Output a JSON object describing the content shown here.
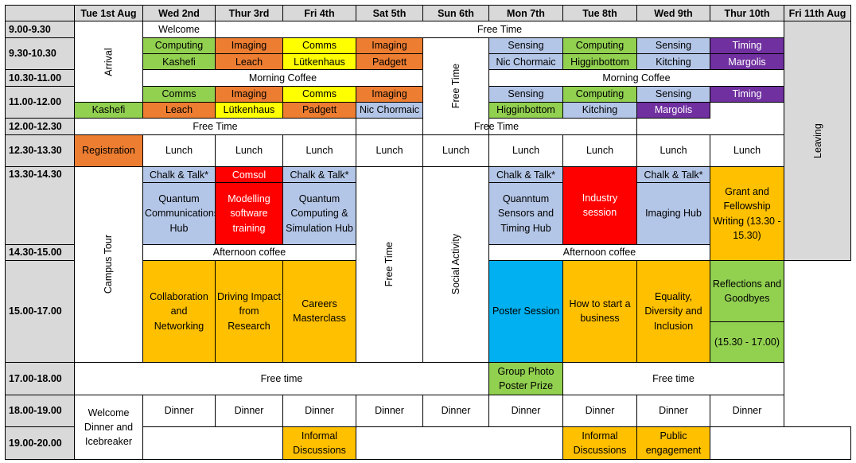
{
  "headers": [
    "",
    "Tue 1st Aug",
    "Wed 2nd",
    "Thur 3rd",
    "Fri 4th",
    "Sat 5th",
    "Sun 6th",
    "Mon 7th",
    "Tue 8th",
    "Wed 9th",
    "Thur 10th",
    "Fri 11th Aug"
  ],
  "times": {
    "t0900": "9.00-9.30",
    "t0930": "9.30-10.30",
    "t1030": "10.30-11.00",
    "t1100": "11.00-12.00",
    "t1200": "12.00-12.30",
    "t1230": "12.30-13.30",
    "t1330": "13.30-14.30",
    "t1430": "14.30-15.00",
    "t1500": "15.00-17.00",
    "t1700": "17.00-18.00",
    "t1800": "18.00-19.00",
    "t1900": "19.00-20.00"
  },
  "cells": {
    "arrival": "Arrival",
    "welcome": "Welcome",
    "free_time_morning": "Free Time",
    "wed_s1_topic": "Computing",
    "wed_s1_lead": "Kashefi",
    "thu_s1_topic": "Imaging",
    "thu_s1_lead": "Leach",
    "fri_s1_topic": "Comms",
    "fri_s1_lead": "Lütkenhaus",
    "sat_s1_topic": "Imaging",
    "sat_s1_lead": "Padgett",
    "sun_free_time": "Free Time",
    "mon_s1_topic": "Sensing",
    "mon_s1_lead": "Nic Chormaic",
    "tue8_s1_topic": "Computing",
    "tue8_s1_lead": "Higginbottom",
    "wed9_s1_topic": "Sensing",
    "wed9_s1_lead": "Kitching",
    "thu10_s1_topic": "Timing",
    "thu10_s1_lead": "Margolis",
    "leaving": "Leaving",
    "coffee_1": "Morning Coffee",
    "coffee_2": "Morning Coffee",
    "wed_s2_topic": "Comms",
    "wed_s2_lead": "Kashefi",
    "thu_s2_topic": "Imaging",
    "thu_s2_lead": "Leach",
    "fri_s2_topic": "Comms",
    "fri_s2_lead": "Lütkenhaus",
    "sat_s2_topic": "Imaging",
    "sat_s2_lead": "Padgett",
    "mon_s2_topic": "Sensing",
    "mon_s2_lead": "Nic Chormaic",
    "tue8_s2_topic": "Computing",
    "tue8_s2_lead": "Higginbottom",
    "wed9_s2_topic": "Sensing",
    "wed9_s2_lead": "Kitching",
    "thu10_s2_topic": "Timing",
    "thu10_s2_lead": "Margolis",
    "free_time_noon_1": "Free Time",
    "free_time_noon_2": "Free Time",
    "registration": "Registration",
    "lunch": "Lunch",
    "campus_tour": "Campus Tour",
    "wed_chalk": "Chalk & Talk*",
    "thu_comsol": "Comsol",
    "fri_chalk": "Chalk & Talk*",
    "sat_free_time": "Free Time",
    "social_activity": "Social Activity",
    "mon_chalk": "Chalk & Talk*",
    "tue8_industry": "Industry session",
    "wed9_chalk": "Chalk & Talk*",
    "grant_writing": "Grant and Fellowship Writing (13.30 - 15.30)",
    "wed_hub": "Quantum Communications Hub",
    "thu_modelling": "Modelling software training",
    "fri_hub": "Quantum Computing & Simulation Hub",
    "mon_hub": "Quanntum Sensors and Timing Hub",
    "wed9_hub": "Imaging Hub",
    "afternoon_coffee_1": "Afternoon coffee",
    "afternoon_coffee_2": "Afternoon coffee",
    "collab": "Collaboration and Networking",
    "impact": "Driving Impact from Research",
    "careers": "Careers Masterclass",
    "poster_session": "Poster Session",
    "startup": "How to start a business",
    "equality": "Equality, Diversity and Inclusion",
    "reflections": "Reflections and Goodbyes",
    "reflections_time": "(15.30 - 17.00)",
    "free_time_evening_1": "Free time",
    "group_photo": "Group Photo Poster Prize",
    "free_time_evening_2": "Free time",
    "welcome_dinner": "Welcome Dinner and Icebreaker",
    "dinner": "Dinner",
    "informal_1": "Informal Discussions",
    "informal_2": "Informal Discussions",
    "public_engagement": "Public engagement"
  },
  "colors": {
    "header_grey": "#d9d9d9",
    "computing_green": "#92d050",
    "imaging_orange": "#ed7d31",
    "comms_yellow": "#ffff00",
    "sensing_blue": "#b4c6e7",
    "timing_purple": "#7030a0",
    "industry_red": "#ff0000",
    "workshop_amber": "#ffc000",
    "poster_cyan": "#00b0f0"
  }
}
